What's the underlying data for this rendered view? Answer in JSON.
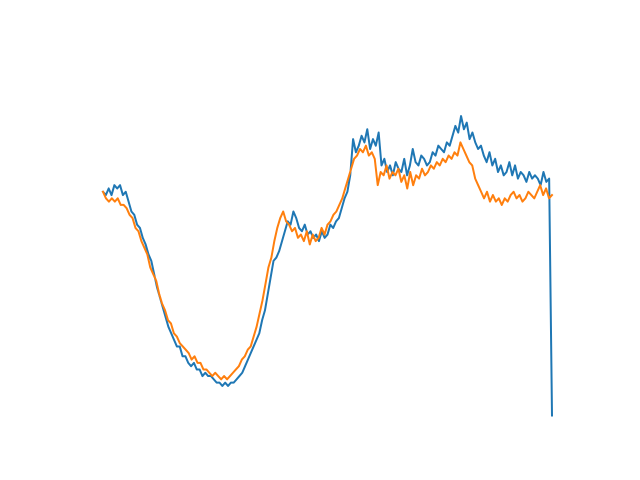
{
  "chart_data": {
    "type": "line",
    "title": "",
    "xlabel": "",
    "ylabel": "",
    "axes_visible": false,
    "grid": false,
    "legend": "none",
    "xlim": [
      0,
      160
    ],
    "ylim": [
      -0.05,
      1.05
    ],
    "series": [
      {
        "color": "#1f77b4",
        "values": [
          0.68,
          0.67,
          0.69,
          0.67,
          0.7,
          0.69,
          0.7,
          0.67,
          0.68,
          0.65,
          0.62,
          0.61,
          0.58,
          0.57,
          0.54,
          0.52,
          0.49,
          0.47,
          0.43,
          0.39,
          0.36,
          0.33,
          0.3,
          0.27,
          0.25,
          0.23,
          0.21,
          0.21,
          0.18,
          0.18,
          0.16,
          0.15,
          0.16,
          0.14,
          0.14,
          0.12,
          0.13,
          0.12,
          0.12,
          0.11,
          0.1,
          0.1,
          0.09,
          0.1,
          0.09,
          0.1,
          0.1,
          0.11,
          0.12,
          0.13,
          0.15,
          0.17,
          0.19,
          0.21,
          0.23,
          0.25,
          0.29,
          0.32,
          0.37,
          0.42,
          0.47,
          0.48,
          0.5,
          0.53,
          0.56,
          0.59,
          0.58,
          0.62,
          0.6,
          0.57,
          0.56,
          0.58,
          0.55,
          0.56,
          0.54,
          0.55,
          0.53,
          0.56,
          0.54,
          0.55,
          0.58,
          0.57,
          0.59,
          0.6,
          0.63,
          0.66,
          0.68,
          0.73,
          0.84,
          0.8,
          0.82,
          0.85,
          0.83,
          0.87,
          0.81,
          0.84,
          0.82,
          0.86,
          0.76,
          0.78,
          0.74,
          0.76,
          0.73,
          0.77,
          0.75,
          0.74,
          0.78,
          0.73,
          0.76,
          0.81,
          0.77,
          0.76,
          0.79,
          0.78,
          0.76,
          0.77,
          0.8,
          0.79,
          0.82,
          0.81,
          0.8,
          0.83,
          0.82,
          0.85,
          0.88,
          0.86,
          0.91,
          0.87,
          0.89,
          0.84,
          0.86,
          0.83,
          0.81,
          0.82,
          0.79,
          0.77,
          0.8,
          0.76,
          0.78,
          0.74,
          0.76,
          0.73,
          0.74,
          0.77,
          0.73,
          0.76,
          0.72,
          0.74,
          0.73,
          0.71,
          0.74,
          0.72,
          0.73,
          0.72,
          0.7,
          0.74,
          0.71,
          0.72,
          0.0
        ]
      },
      {
        "color": "#ff7f0e",
        "values": [
          0.68,
          0.66,
          0.65,
          0.66,
          0.65,
          0.66,
          0.64,
          0.64,
          0.63,
          0.61,
          0.6,
          0.57,
          0.56,
          0.53,
          0.51,
          0.49,
          0.45,
          0.43,
          0.41,
          0.37,
          0.34,
          0.32,
          0.29,
          0.28,
          0.25,
          0.24,
          0.22,
          0.21,
          0.2,
          0.19,
          0.17,
          0.18,
          0.16,
          0.16,
          0.14,
          0.14,
          0.13,
          0.12,
          0.13,
          0.12,
          0.11,
          0.12,
          0.11,
          0.12,
          0.13,
          0.14,
          0.15,
          0.17,
          0.18,
          0.2,
          0.21,
          0.24,
          0.27,
          0.31,
          0.35,
          0.4,
          0.45,
          0.48,
          0.53,
          0.57,
          0.6,
          0.62,
          0.59,
          0.58,
          0.56,
          0.57,
          0.54,
          0.55,
          0.53,
          0.56,
          0.52,
          0.55,
          0.53,
          0.54,
          0.57,
          0.55,
          0.58,
          0.59,
          0.61,
          0.62,
          0.64,
          0.66,
          0.69,
          0.72,
          0.75,
          0.78,
          0.79,
          0.81,
          0.8,
          0.82,
          0.79,
          0.8,
          0.78,
          0.7,
          0.74,
          0.73,
          0.76,
          0.72,
          0.74,
          0.73,
          0.75,
          0.71,
          0.73,
          0.69,
          0.74,
          0.7,
          0.73,
          0.72,
          0.75,
          0.73,
          0.74,
          0.76,
          0.75,
          0.77,
          0.76,
          0.78,
          0.77,
          0.79,
          0.78,
          0.8,
          0.79,
          0.83,
          0.81,
          0.79,
          0.77,
          0.76,
          0.72,
          0.7,
          0.68,
          0.66,
          0.68,
          0.65,
          0.67,
          0.65,
          0.66,
          0.64,
          0.66,
          0.65,
          0.67,
          0.68,
          0.66,
          0.67,
          0.65,
          0.66,
          0.68,
          0.67,
          0.66,
          0.68,
          0.7,
          0.67,
          0.69,
          0.66,
          0.67
        ]
      }
    ]
  }
}
